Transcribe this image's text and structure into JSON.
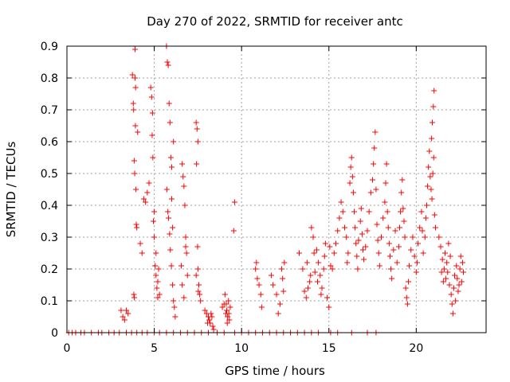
{
  "chart_data": {
    "type": "scatter",
    "title": "Day 270 of 2022, SRMTID for receiver antc",
    "xlabel": "GPS time / hours",
    "ylabel": "SRMTID / TECUs",
    "xlim": [
      0,
      24
    ],
    "ylim": [
      0,
      0.9
    ],
    "xticks": [
      0,
      5,
      10,
      15,
      20
    ],
    "xtick_labels": [
      "0",
      "5",
      "10",
      "15",
      "20"
    ],
    "yticks": [
      0,
      0.1,
      0.2,
      0.3,
      0.4,
      0.5,
      0.6,
      0.7,
      0.8,
      0.9
    ],
    "ytick_labels": [
      "0",
      "0.1",
      "0.2",
      "0.3",
      "0.4",
      "0.5",
      "0.6",
      "0.7",
      "0.8",
      "0.9"
    ],
    "grid": true,
    "marker": "+",
    "color": "#ff0000",
    "series": [
      {
        "name": "SRMTID",
        "points": [
          [
            0.1,
            0
          ],
          [
            0.3,
            0
          ],
          [
            0.5,
            0
          ],
          [
            0.8,
            0
          ],
          [
            1.0,
            0
          ],
          [
            1.4,
            0
          ],
          [
            1.8,
            0
          ],
          [
            2.0,
            0
          ],
          [
            2.4,
            0
          ],
          [
            2.7,
            0
          ],
          [
            3.0,
            0
          ],
          [
            3.4,
            0
          ],
          [
            3.7,
            0
          ],
          [
            4.0,
            0
          ],
          [
            4.3,
            0
          ],
          [
            4.6,
            0
          ],
          [
            5.0,
            0
          ],
          [
            5.3,
            0
          ],
          [
            5.7,
            0
          ],
          [
            6.1,
            0
          ],
          [
            6.5,
            0
          ],
          [
            6.9,
            0
          ],
          [
            7.3,
            0
          ],
          [
            7.7,
            0
          ],
          [
            8.1,
            0
          ],
          [
            8.6,
            0
          ],
          [
            9.0,
            0
          ],
          [
            9.6,
            0
          ],
          [
            10.0,
            0
          ],
          [
            10.4,
            0
          ],
          [
            10.8,
            0
          ],
          [
            11.2,
            0
          ],
          [
            11.6,
            0
          ],
          [
            12.0,
            0
          ],
          [
            12.4,
            0
          ],
          [
            12.8,
            0
          ],
          [
            13.2,
            0
          ],
          [
            13.6,
            0
          ],
          [
            14.0,
            0
          ],
          [
            14.4,
            0
          ],
          [
            15.1,
            0
          ],
          [
            15.5,
            0
          ],
          [
            16.3,
            0
          ],
          [
            17.2,
            0
          ],
          [
            17.7,
            0
          ],
          [
            3.1,
            0.07
          ],
          [
            3.2,
            0.05
          ],
          [
            3.3,
            0.04
          ],
          [
            3.4,
            0.07
          ],
          [
            3.5,
            0.06
          ],
          [
            3.75,
            0.81
          ],
          [
            3.8,
            0.72
          ],
          [
            3.82,
            0.7
          ],
          [
            3.85,
            0.54
          ],
          [
            3.88,
            0.5
          ],
          [
            3.9,
            0.89
          ],
          [
            3.92,
            0.65
          ],
          [
            3.95,
            0.45
          ],
          [
            3.97,
            0.34
          ],
          [
            4.0,
            0.33
          ],
          [
            3.83,
            0.12
          ],
          [
            3.86,
            0.11
          ],
          [
            3.9,
            0.8
          ],
          [
            3.93,
            0.77
          ],
          [
            4.05,
            0.63
          ],
          [
            4.2,
            0.28
          ],
          [
            4.3,
            0.25
          ],
          [
            4.4,
            0.42
          ],
          [
            4.5,
            0.41
          ],
          [
            4.6,
            0.44
          ],
          [
            4.7,
            0.47
          ],
          [
            4.8,
            0.77
          ],
          [
            4.85,
            0.74
          ],
          [
            4.9,
            0.69
          ],
          [
            4.92,
            0.55
          ],
          [
            4.95,
            0.35
          ],
          [
            5.0,
            0.3
          ],
          [
            5.05,
            0.21
          ],
          [
            5.1,
            0.18
          ],
          [
            5.15,
            0.14
          ],
          [
            5.2,
            0.11
          ],
          [
            5.25,
            0.2
          ],
          [
            5.3,
            0.12
          ],
          [
            5.0,
            0.38
          ],
          [
            4.88,
            0.62
          ],
          [
            5.1,
            0.25
          ],
          [
            5.2,
            0.16
          ],
          [
            5.7,
            0.9
          ],
          [
            5.75,
            0.85
          ],
          [
            5.8,
            0.84
          ],
          [
            5.85,
            0.72
          ],
          [
            5.9,
            0.66
          ],
          [
            5.95,
            0.55
          ],
          [
            6.0,
            0.52
          ],
          [
            5.72,
            0.45
          ],
          [
            5.78,
            0.38
          ],
          [
            5.82,
            0.36
          ],
          [
            5.88,
            0.31
          ],
          [
            5.92,
            0.26
          ],
          [
            5.98,
            0.21
          ],
          [
            6.05,
            0.15
          ],
          [
            6.1,
            0.1
          ],
          [
            6.15,
            0.08
          ],
          [
            6.2,
            0.05
          ],
          [
            6.1,
            0.6
          ],
          [
            6.0,
            0.42
          ],
          [
            6.05,
            0.33
          ],
          [
            6.6,
            0.53
          ],
          [
            6.65,
            0.49
          ],
          [
            6.7,
            0.46
          ],
          [
            6.75,
            0.4
          ],
          [
            6.8,
            0.3
          ],
          [
            6.85,
            0.25
          ],
          [
            6.9,
            0.18
          ],
          [
            6.6,
            0.15
          ],
          [
            6.7,
            0.11
          ],
          [
            6.8,
            0.27
          ],
          [
            6.55,
            0.21
          ],
          [
            7.4,
            0.66
          ],
          [
            7.45,
            0.64
          ],
          [
            7.5,
            0.6
          ],
          [
            7.42,
            0.53
          ],
          [
            7.48,
            0.27
          ],
          [
            7.5,
            0.2
          ],
          [
            7.55,
            0.15
          ],
          [
            7.6,
            0.12
          ],
          [
            7.65,
            0.1
          ],
          [
            7.4,
            0.18
          ],
          [
            7.52,
            0.13
          ],
          [
            7.9,
            0.07
          ],
          [
            8.0,
            0.06
          ],
          [
            8.1,
            0.05
          ],
          [
            8.15,
            0.04
          ],
          [
            8.2,
            0.03
          ],
          [
            8.3,
            0.05
          ],
          [
            8.35,
            0.02
          ],
          [
            8.4,
            0.01
          ],
          [
            8.25,
            0.06
          ],
          [
            8.05,
            0.03
          ],
          [
            8.9,
            0.08
          ],
          [
            9.0,
            0.09
          ],
          [
            9.1,
            0.06
          ],
          [
            9.15,
            0.07
          ],
          [
            9.2,
            0.05
          ],
          [
            9.25,
            0.1
          ],
          [
            9.3,
            0.04
          ],
          [
            9.35,
            0.08
          ],
          [
            9.05,
            0.12
          ],
          [
            9.18,
            0.03
          ],
          [
            9.27,
            0.06
          ],
          [
            9.12,
            0.09
          ],
          [
            9.6,
            0.41
          ],
          [
            9.55,
            0.32
          ],
          [
            10.8,
            0.2
          ],
          [
            10.9,
            0.17
          ],
          [
            11.0,
            0.15
          ],
          [
            11.1,
            0.12
          ],
          [
            11.15,
            0.08
          ],
          [
            10.85,
            0.22
          ],
          [
            11.7,
            0.18
          ],
          [
            11.8,
            0.15
          ],
          [
            12.0,
            0.12
          ],
          [
            12.1,
            0.06
          ],
          [
            12.2,
            0.09
          ],
          [
            12.3,
            0.2
          ],
          [
            12.35,
            0.17
          ],
          [
            12.4,
            0.13
          ],
          [
            12.45,
            0.22
          ],
          [
            13.3,
            0.25
          ],
          [
            13.5,
            0.2
          ],
          [
            13.6,
            0.13
          ],
          [
            13.7,
            0.11
          ],
          [
            13.8,
            0.14
          ],
          [
            13.9,
            0.16
          ],
          [
            14.0,
            0.33
          ],
          [
            14.1,
            0.3
          ],
          [
            14.2,
            0.19
          ],
          [
            14.3,
            0.26
          ],
          [
            14.4,
            0.22
          ],
          [
            14.5,
            0.18
          ],
          [
            14.6,
            0.14
          ],
          [
            14.7,
            0.2
          ],
          [
            14.8,
            0.28
          ],
          [
            14.9,
            0.11
          ],
          [
            15.0,
            0.08
          ],
          [
            14.75,
            0.24
          ],
          [
            14.55,
            0.12
          ],
          [
            14.35,
            0.16
          ],
          [
            13.75,
            0.22
          ],
          [
            13.95,
            0.18
          ],
          [
            14.15,
            0.25
          ],
          [
            15.05,
            0.27
          ],
          [
            15.1,
            0.21
          ],
          [
            15.2,
            0.2
          ],
          [
            15.3,
            0.25
          ],
          [
            15.4,
            0.28
          ],
          [
            15.5,
            0.32
          ],
          [
            15.6,
            0.36
          ],
          [
            15.7,
            0.41
          ],
          [
            15.8,
            0.38
          ],
          [
            15.9,
            0.33
          ],
          [
            16.0,
            0.3
          ],
          [
            16.05,
            0.22
          ],
          [
            16.1,
            0.25
          ],
          [
            16.2,
            0.47
          ],
          [
            16.25,
            0.52
          ],
          [
            16.3,
            0.55
          ],
          [
            16.35,
            0.49
          ],
          [
            16.4,
            0.44
          ],
          [
            16.45,
            0.38
          ],
          [
            16.5,
            0.33
          ],
          [
            16.55,
            0.28
          ],
          [
            16.6,
            0.24
          ],
          [
            16.65,
            0.2
          ],
          [
            16.7,
            0.29
          ],
          [
            16.8,
            0.35
          ],
          [
            16.85,
            0.39
          ],
          [
            16.9,
            0.31
          ],
          [
            16.95,
            0.26
          ],
          [
            17.0,
            0.23
          ],
          [
            17.1,
            0.27
          ],
          [
            17.2,
            0.32
          ],
          [
            17.3,
            0.38
          ],
          [
            17.4,
            0.44
          ],
          [
            17.5,
            0.48
          ],
          [
            17.55,
            0.53
          ],
          [
            17.6,
            0.58
          ],
          [
            17.65,
            0.63
          ],
          [
            17.7,
            0.45
          ],
          [
            17.75,
            0.34
          ],
          [
            17.8,
            0.29
          ],
          [
            17.85,
            0.25
          ],
          [
            17.9,
            0.21
          ],
          [
            18.0,
            0.3
          ],
          [
            18.1,
            0.36
          ],
          [
            18.2,
            0.41
          ],
          [
            18.25,
            0.47
          ],
          [
            18.3,
            0.53
          ],
          [
            18.35,
            0.38
          ],
          [
            18.4,
            0.33
          ],
          [
            18.45,
            0.28
          ],
          [
            18.5,
            0.24
          ],
          [
            18.55,
            0.2
          ],
          [
            18.6,
            0.17
          ],
          [
            18.7,
            0.26
          ],
          [
            18.8,
            0.32
          ],
          [
            18.9,
            0.22
          ],
          [
            19.0,
            0.27
          ],
          [
            19.05,
            0.33
          ],
          [
            19.1,
            0.38
          ],
          [
            19.15,
            0.44
          ],
          [
            19.2,
            0.48
          ],
          [
            19.25,
            0.39
          ],
          [
            19.3,
            0.35
          ],
          [
            19.35,
            0.3
          ],
          [
            19.4,
            0.14
          ],
          [
            19.45,
            0.11
          ],
          [
            19.5,
            0.09
          ],
          [
            19.55,
            0.16
          ],
          [
            19.6,
            0.21
          ],
          [
            19.7,
            0.26
          ],
          [
            19.8,
            0.3
          ],
          [
            19.9,
            0.24
          ],
          [
            20.0,
            0.19
          ],
          [
            20.05,
            0.22
          ],
          [
            20.1,
            0.28
          ],
          [
            20.2,
            0.33
          ],
          [
            20.3,
            0.38
          ],
          [
            20.35,
            0.32
          ],
          [
            20.4,
            0.25
          ],
          [
            20.5,
            0.3
          ],
          [
            20.55,
            0.36
          ],
          [
            20.6,
            0.4
          ],
          [
            20.65,
            0.46
          ],
          [
            20.7,
            0.52
          ],
          [
            20.75,
            0.57
          ],
          [
            20.8,
            0.49
          ],
          [
            20.85,
            0.45
          ],
          [
            20.9,
            0.42
          ],
          [
            20.95,
            0.5
          ],
          [
            21.0,
            0.55
          ],
          [
            20.88,
            0.61
          ],
          [
            20.92,
            0.66
          ],
          [
            20.98,
            0.71
          ],
          [
            21.02,
            0.76
          ],
          [
            21.05,
            0.37
          ],
          [
            21.1,
            0.33
          ],
          [
            21.3,
            0.3
          ],
          [
            21.4,
            0.27
          ],
          [
            21.5,
            0.23
          ],
          [
            21.6,
            0.2
          ],
          [
            21.7,
            0.17
          ],
          [
            21.75,
            0.22
          ],
          [
            21.8,
            0.19
          ],
          [
            21.9,
            0.15
          ],
          [
            22.0,
            0.12
          ],
          [
            22.05,
            0.09
          ],
          [
            22.1,
            0.06
          ],
          [
            22.15,
            0.14
          ],
          [
            22.2,
            0.18
          ],
          [
            22.3,
            0.21
          ],
          [
            22.35,
            0.17
          ],
          [
            22.4,
            0.13
          ],
          [
            22.5,
            0.2
          ],
          [
            22.55,
            0.24
          ],
          [
            22.6,
            0.16
          ],
          [
            22.7,
            0.19
          ],
          [
            21.85,
            0.28
          ],
          [
            21.65,
            0.25
          ],
          [
            22.25,
            0.1
          ],
          [
            22.45,
            0.15
          ],
          [
            22.65,
            0.22
          ],
          [
            21.95,
            0.24
          ],
          [
            21.55,
            0.16
          ],
          [
            21.45,
            0.19
          ]
        ]
      }
    ]
  }
}
